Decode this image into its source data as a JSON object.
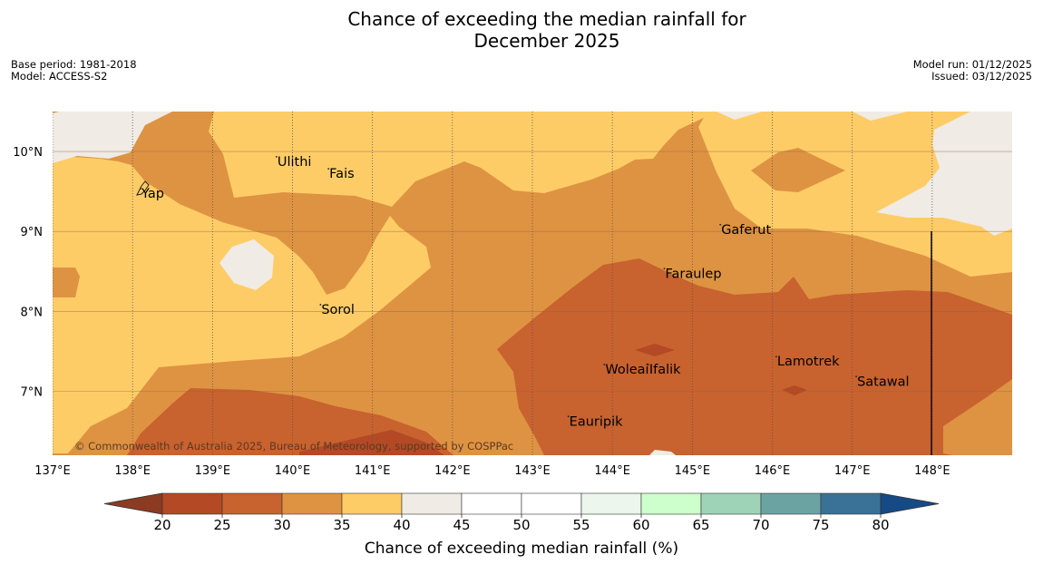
{
  "title_line1": "Chance of exceeding the median rainfall for",
  "title_line2": "December 2025",
  "meta_left": [
    "Base period: 1981-2018",
    "Model: ACCESS-S2"
  ],
  "meta_right": [
    "Model run: 01/12/2025",
    "Issued: 03/12/2025"
  ],
  "copyright": "© Commonwealth of Australia 2025, Bureau of Meteorology, supported by COSPPac",
  "map": {
    "lon_range": [
      137.0,
      149.0
    ],
    "lat_range": [
      6.2,
      10.5
    ],
    "lon_ticks": [
      {
        "value": 137,
        "label": "137°E"
      },
      {
        "value": 138,
        "label": "138°E"
      },
      {
        "value": 139,
        "label": "139°E"
      },
      {
        "value": 140,
        "label": "140°E"
      },
      {
        "value": 141,
        "label": "141°E"
      },
      {
        "value": 142,
        "label": "142°E"
      },
      {
        "value": 143,
        "label": "143°E"
      },
      {
        "value": 144,
        "label": "144°E"
      },
      {
        "value": 145,
        "label": "145°E"
      },
      {
        "value": 146,
        "label": "146°E"
      },
      {
        "value": 147,
        "label": "147°E"
      },
      {
        "value": 148,
        "label": "148°E"
      }
    ],
    "lat_ticks": [
      {
        "value": 10,
        "label": "10°N"
      },
      {
        "value": 9,
        "label": "9°N"
      },
      {
        "value": 8,
        "label": "8°N"
      },
      {
        "value": 7,
        "label": "7°N"
      }
    ],
    "places": [
      {
        "name": "Ulithi",
        "lon": 139.8,
        "lat": 9.9
      },
      {
        "name": "Fais",
        "lon": 140.45,
        "lat": 9.75
      },
      {
        "name": "Yap",
        "lon": 138.1,
        "lat": 9.5
      },
      {
        "name": "Gaferut",
        "lon": 145.35,
        "lat": 9.05
      },
      {
        "name": "Faraulep",
        "lon": 144.65,
        "lat": 8.5
      },
      {
        "name": "Sorol",
        "lon": 140.35,
        "lat": 8.05
      },
      {
        "name": "Lamotrek",
        "lon": 146.05,
        "lat": 7.4
      },
      {
        "name": "Woleai",
        "lon": 143.9,
        "lat": 7.3
      },
      {
        "name": "Ifalik",
        "lon": 144.45,
        "lat": 7.3
      },
      {
        "name": "Satawal",
        "lon": 147.05,
        "lat": 7.15
      },
      {
        "name": "Eauripik",
        "lon": 143.45,
        "lat": 6.65
      }
    ]
  },
  "colorbar": {
    "title": "Chance of exceeding median rainfall (%)",
    "ticks": [
      "20",
      "25",
      "30",
      "35",
      "40",
      "45",
      "50",
      "55",
      "60",
      "65",
      "70",
      "75",
      "80"
    ],
    "colors": [
      "#b34a25",
      "#c8622f",
      "#de9342",
      "#fecc66",
      "#f0ebe4",
      "#ffffff",
      "#ffffff",
      "#ecf6ec",
      "#ccffcc",
      "#9fd3b8",
      "#6ba3a3",
      "#3a7297"
    ],
    "under_color": "#8c3b22",
    "over_color": "#154a85"
  }
}
